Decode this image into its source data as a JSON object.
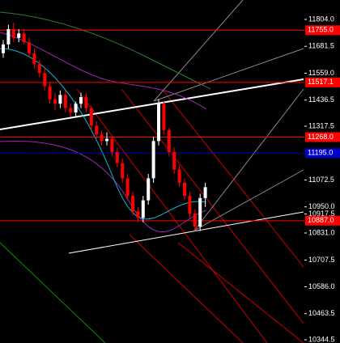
{
  "chart_data": {
    "type": "candlestick",
    "ylim": [
      10329.8,
      11892.5
    ],
    "yticks": [
      {
        "value": 11804.0,
        "label": "11804.0"
      },
      {
        "value": 11681.5,
        "label": "11681.5"
      },
      {
        "value": 11559.0,
        "label": "11559.0"
      },
      {
        "value": 11436.5,
        "label": "11436.5"
      },
      {
        "value": 11317.5,
        "label": "11317.5"
      },
      {
        "value": 11072.5,
        "label": "11072.5"
      },
      {
        "value": 10950.0,
        "label": "10950.0"
      },
      {
        "value": 10917.5,
        "label": "10917.5"
      },
      {
        "value": 10831.0,
        "label": "10831.0"
      },
      {
        "value": 10707.5,
        "label": "10707.5"
      },
      {
        "value": 10586.0,
        "label": "10586.0"
      },
      {
        "value": 10463.5,
        "label": "10463.5"
      },
      {
        "value": 10344.5,
        "label": "10344.5"
      }
    ],
    "levels": [
      {
        "value": 11755.0,
        "label": "11755.0",
        "color": "#ff0000"
      },
      {
        "value": 11517.1,
        "label": "11517.1",
        "color": "#ff0000"
      },
      {
        "value": 11268.0,
        "label": "11268.0",
        "color": "#ff0000"
      },
      {
        "value": 11195.0,
        "label": "11195.0",
        "color": "#0000cc"
      },
      {
        "value": 10887.0,
        "label": "10887.0",
        "color": "#ff0000"
      }
    ],
    "up_color": "#ffffff",
    "down_color": "#ff0000",
    "open": [
      11650,
      11690,
      11760,
      11720,
      11740,
      11700,
      11650,
      11600,
      11560,
      11500,
      11440,
      11420,
      11460,
      11400,
      11380,
      11420,
      11450,
      11400,
      11320,
      11280,
      11250,
      11260,
      11200,
      11150,
      11080,
      11000,
      10930,
      10900,
      10980,
      11080,
      11250,
      11420,
      11300,
      11200,
      11120,
      11060,
      11000,
      10920,
      10860,
      10990
    ],
    "high": [
      11710,
      11780,
      11790,
      11760,
      11760,
      11720,
      11670,
      11620,
      11580,
      11520,
      11470,
      11480,
      11480,
      11420,
      11430,
      11470,
      11470,
      11410,
      11340,
      11300,
      11290,
      11270,
      11220,
      11170,
      11100,
      11020,
      10950,
      11000,
      11100,
      11270,
      11440,
      11430,
      11310,
      11220,
      11140,
      11080,
      11020,
      10940,
      11010,
      11060
    ],
    "low": [
      11630,
      11670,
      11700,
      11700,
      11690,
      11630,
      11580,
      11540,
      11480,
      11420,
      11390,
      11400,
      11380,
      11360,
      11360,
      11400,
      11380,
      11300,
      11260,
      11230,
      11230,
      11180,
      11130,
      11060,
      10980,
      10910,
      10880,
      10880,
      10960,
      11060,
      11230,
      11280,
      11180,
      11100,
      11040,
      10980,
      10900,
      10840,
      10840,
      10950
    ],
    "close": [
      11690,
      11760,
      11720,
      11740,
      11700,
      11650,
      11600,
      11560,
      11500,
      11440,
      11420,
      11460,
      11400,
      11380,
      11420,
      11450,
      11400,
      11320,
      11280,
      11250,
      11260,
      11200,
      11150,
      11080,
      11000,
      10930,
      10900,
      10980,
      11080,
      11250,
      11420,
      11300,
      11200,
      11120,
      11060,
      11000,
      10920,
      10860,
      10990,
      11040
    ]
  }
}
